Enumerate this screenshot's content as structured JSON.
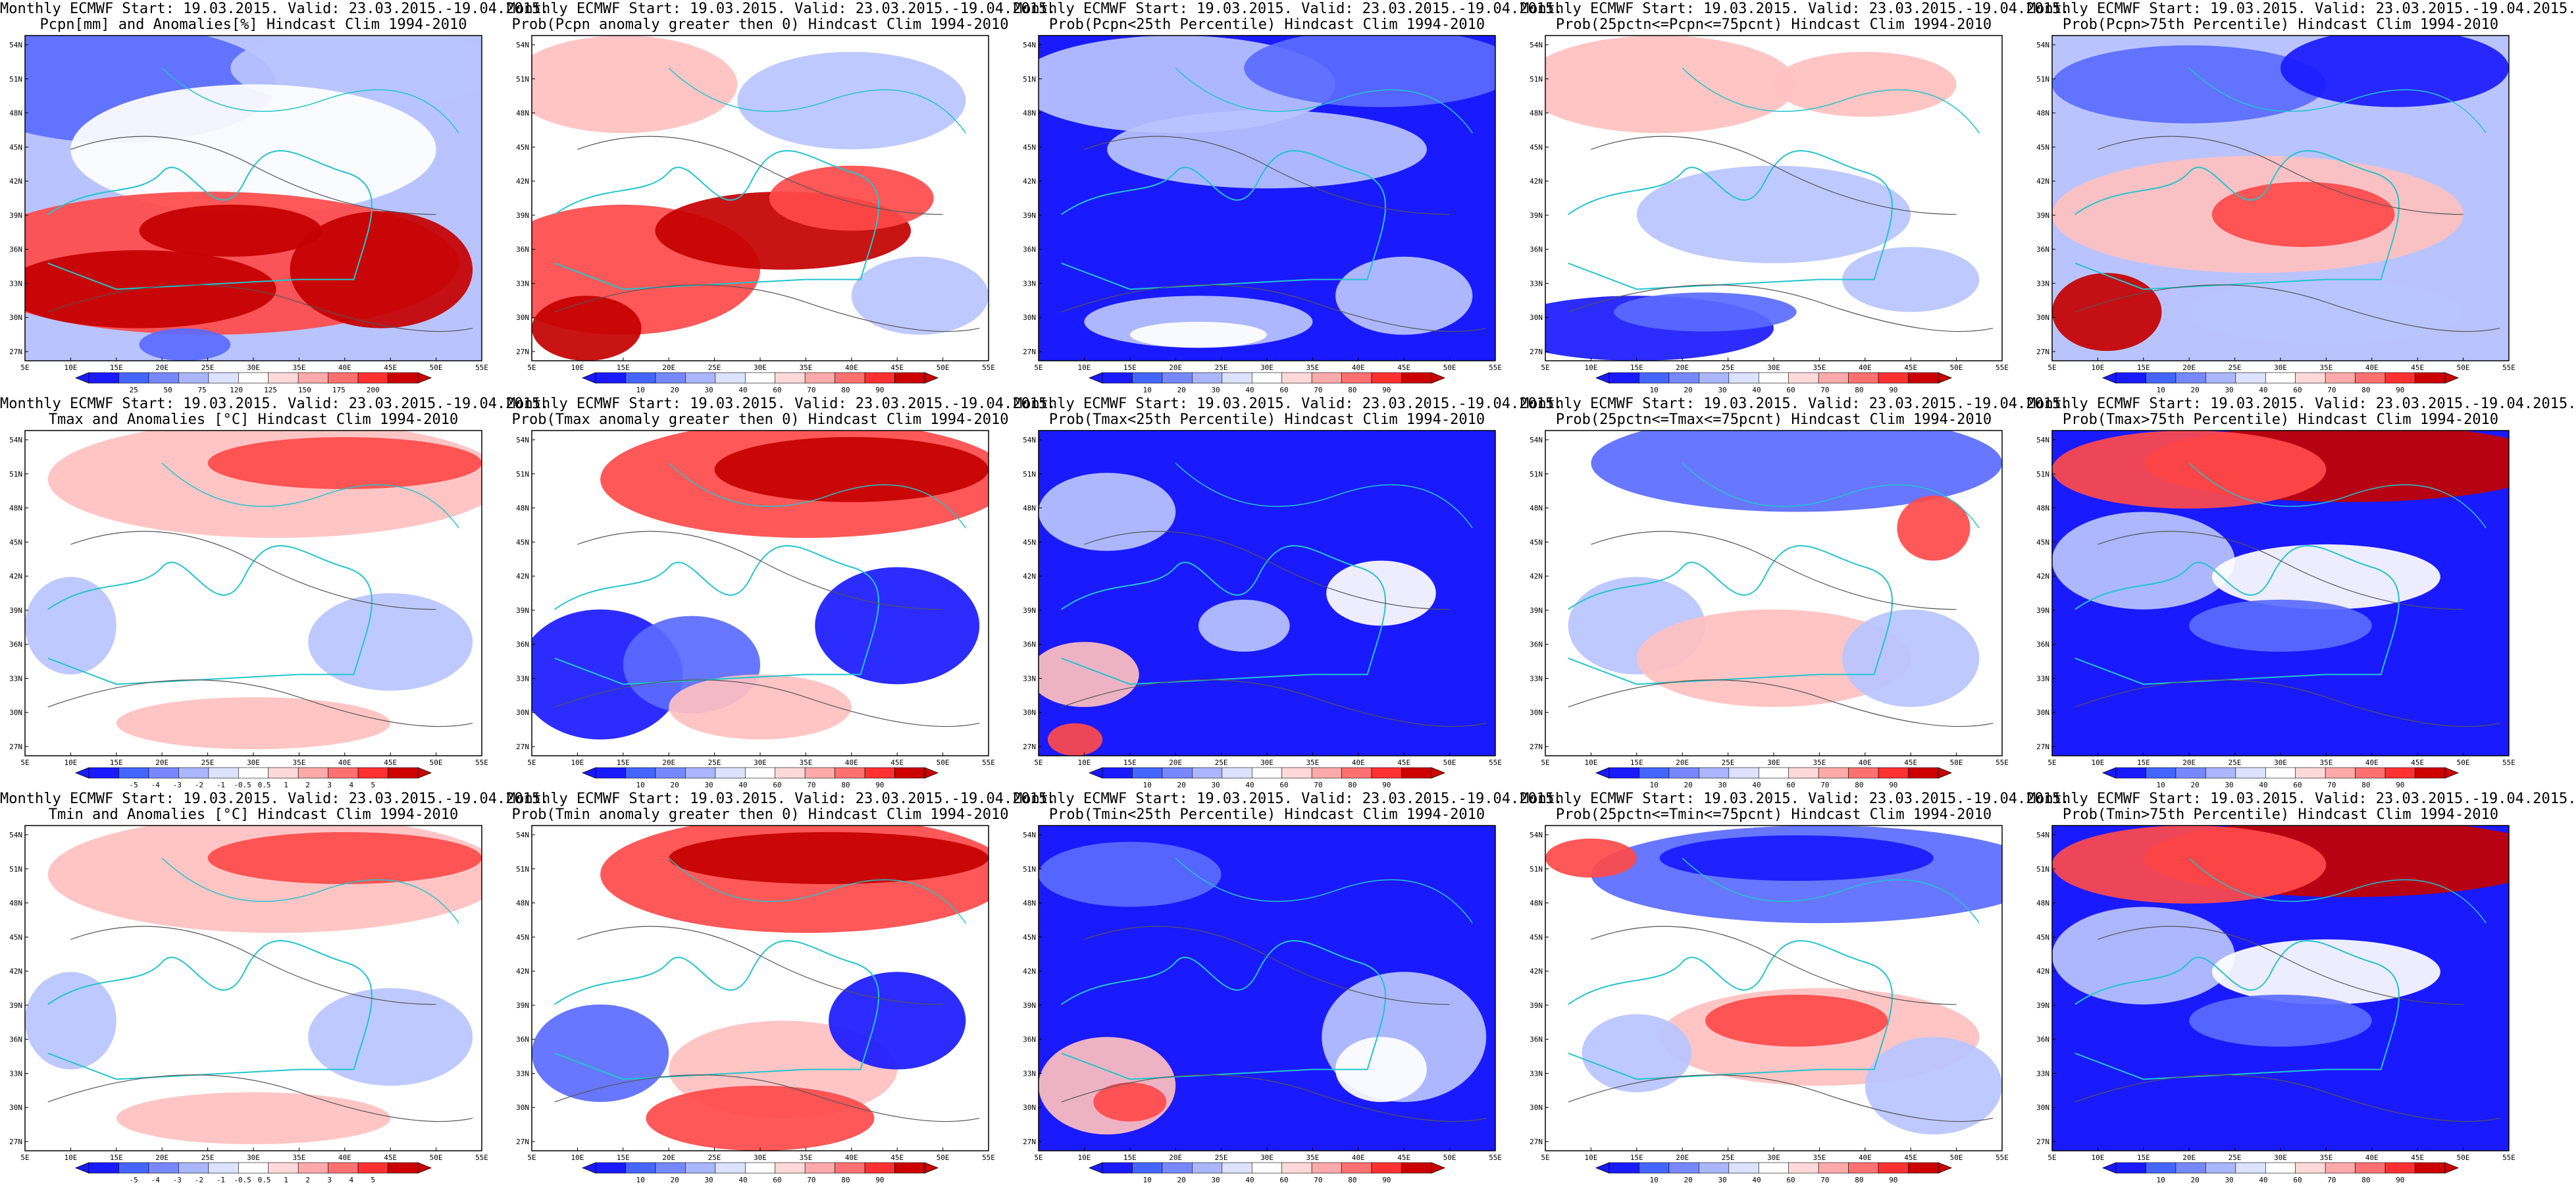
{
  "page": {
    "background": "#ffffff"
  },
  "colors": {
    "land_blue": "#1a1aff",
    "mid_blue": "#5a6bff",
    "light_blue": "#b9c4ff",
    "white": "#ffffff",
    "light_red": "#ffc0c0",
    "mid_red": "#ff4a4a",
    "dark_red": "#c40000",
    "coast": "#22c5cc",
    "contour": "#555555"
  },
  "lat_labels": [
    "54N",
    "51N",
    "48N",
    "45N",
    "42N",
    "39N",
    "36N",
    "33N",
    "30N",
    "27N"
  ],
  "lon_labels": [
    "5E",
    "10E",
    "15E",
    "20E",
    "25E",
    "30E",
    "35E",
    "40E",
    "45E",
    "50E",
    "55E"
  ],
  "cbar_sets": {
    "pcpn_anom": [
      "25",
      "50",
      "75",
      "120",
      "125",
      "150",
      "175",
      "200"
    ],
    "prob": [
      "10",
      "20",
      "30",
      "40",
      "60",
      "70",
      "80",
      "90"
    ],
    "temp_anom": [
      "-5",
      "-4",
      "-3",
      "-2",
      "-1",
      "-0.5",
      "0.5",
      "1",
      "2",
      "3",
      "4",
      "5"
    ]
  },
  "panels": [
    {
      "id": "r1c1",
      "title1": "Monthly ECMWF Start: 19.03.2015. Valid: 23.03.2015.-19.04.2015.",
      "title2": "Pcpn[mm] and Anomalies[%] Hindcast Clim 1994-2010",
      "cbar": "pcpn_anom",
      "pattern": "pcpn_anom"
    },
    {
      "id": "r1c2",
      "title1": "Monthly ECMWF Start: 19.03.2015. Valid: 23.03.2015.-19.04.2015.",
      "title2": "Prob(Pcpn anomaly greater then 0) Hindcast Clim 1994-2010",
      "cbar": "prob",
      "pattern": "pcpn_prob"
    },
    {
      "id": "r1c3",
      "title1": "Monthly ECMWF Start: 19.03.2015. Valid: 23.03.2015.-19.04.2015.",
      "title2": "Prob(Pcpn<25th Percentile) Hindcast Clim 1994-2010",
      "cbar": "prob",
      "pattern": "pcpn_low"
    },
    {
      "id": "r1c4",
      "title1": "Monthly ECMWF Start: 19.03.2015. Valid: 23.03.2015.-19.04.2015.",
      "title2": "Prob(25pctn<=Pcpn<=75pcnt) Hindcast Clim 1994-2010",
      "cbar": "prob",
      "pattern": "pcpn_mid"
    },
    {
      "id": "r1c5",
      "title1": "Monthly ECMWF Start: 19.03.2015. Valid: 23.03.2015.-19.04.2015.",
      "title2": "Prob(Pcpn>75th Percentile) Hindcast Clim 1994-2010",
      "cbar": "prob",
      "pattern": "pcpn_high"
    },
    {
      "id": "r2c1",
      "title1": "Monthly ECMWF Start: 19.03.2015. Valid: 23.03.2015.-19.04.2015.",
      "title2": "Tmax and Anomalies [°C] Hindcast Clim 1994-2010",
      "cbar": "temp_anom",
      "pattern": "temp_anom_weak"
    },
    {
      "id": "r2c2",
      "title1": "Monthly ECMWF Start: 19.03.2015. Valid: 23.03.2015.-19.04.2015.",
      "title2": "Prob(Tmax anomaly greater then 0) Hindcast Clim 1994-2010",
      "cbar": "prob",
      "pattern": "temp_prob"
    },
    {
      "id": "r2c3",
      "title1": "Monthly ECMWF Start: 19.03.2015. Valid: 23.03.2015.-19.04.2015.",
      "title2": "Prob(Tmax<25th Percentile) Hindcast Clim 1994-2010",
      "cbar": "prob",
      "pattern": "temp_low"
    },
    {
      "id": "r2c4",
      "title1": "Monthly ECMWF Start: 19.03.2015. Valid: 23.03.2015.-19.04.2015.",
      "title2": "Prob(25pctn<=Tmax<=75pcnt) Hindcast Clim 1994-2010",
      "cbar": "prob",
      "pattern": "temp_mid"
    },
    {
      "id": "r2c5",
      "title1": "Monthly ECMWF Start: 19.03.2015. Valid: 23.03.2015.-19.04.2015.",
      "title2": "Prob(Tmax>75th Percentile) Hindcast Clim 1994-2010",
      "cbar": "prob",
      "pattern": "temp_high"
    },
    {
      "id": "r3c1",
      "title1": "Monthly ECMWF Start: 19.03.2015. Valid: 23.03.2015.-19.04.2015.",
      "title2": "Tmin and Anomalies [°C] Hindcast Clim 1994-2010",
      "cbar": "temp_anom",
      "pattern": "temp_anom_weak"
    },
    {
      "id": "r3c2",
      "title1": "Monthly ECMWF Start: 19.03.2015. Valid: 23.03.2015.-19.04.2015.",
      "title2": "Prob(Tmin anomaly greater then 0) Hindcast Clim 1994-2010",
      "cbar": "prob",
      "pattern": "tmin_prob"
    },
    {
      "id": "r3c3",
      "title1": "Monthly ECMWF Start: 19.03.2015. Valid: 23.03.2015.-19.04.2015.",
      "title2": "Prob(Tmin<25th Percentile) Hindcast Clim 1994-2010",
      "cbar": "prob",
      "pattern": "tmin_low"
    },
    {
      "id": "r3c4",
      "title1": "Monthly ECMWF Start: 19.03.2015. Valid: 23.03.2015.-19.04.2015.",
      "title2": "Prob(25pctn<=Tmin<=75pcnt) Hindcast Clim 1994-2010",
      "cbar": "prob",
      "pattern": "tmin_mid"
    },
    {
      "id": "r3c5",
      "title1": "Monthly ECMWF Start: 19.03.2015. Valid: 23.03.2015.-19.04.2015.",
      "title2": "Prob(Tmin>75th Percentile) Hindcast Clim 1994-2010",
      "cbar": "prob",
      "pattern": "temp_high"
    }
  ]
}
